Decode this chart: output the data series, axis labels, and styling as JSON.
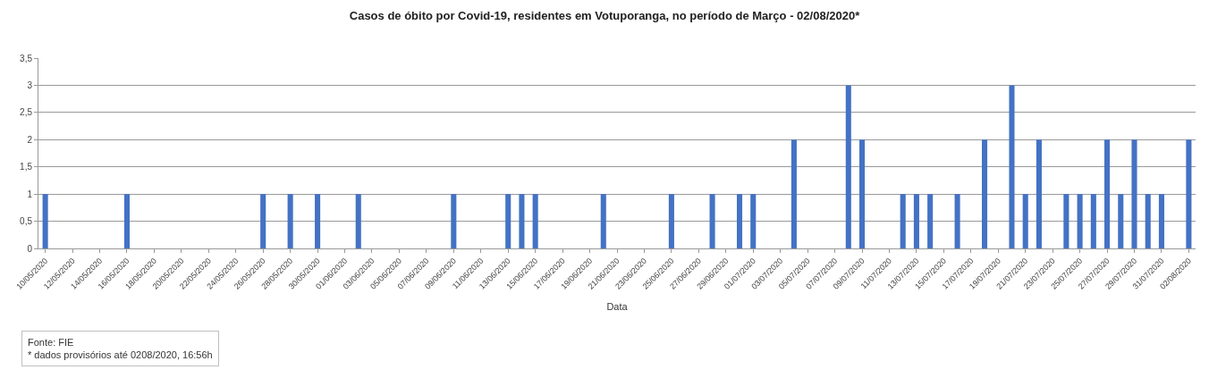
{
  "chart_data": {
    "type": "bar",
    "title": "Casos de óbito por Covid-19, residentes em Votuporanga, no período de Março - 02/08/2020*",
    "xlabel": "Data",
    "x": [
      "2020-05-10",
      "2020-05-16",
      "2020-05-26",
      "2020-05-28",
      "2020-05-30",
      "2020-06-02",
      "2020-06-09",
      "2020-06-13",
      "2020-06-14",
      "2020-06-15",
      "2020-06-20",
      "2020-06-25",
      "2020-06-28",
      "2020-06-30",
      "2020-07-01",
      "2020-07-04",
      "2020-07-08",
      "2020-07-09",
      "2020-07-12",
      "2020-07-13",
      "2020-07-14",
      "2020-07-16",
      "2020-07-18",
      "2020-07-20",
      "2020-07-21",
      "2020-07-22",
      "2020-07-24",
      "2020-07-25",
      "2020-07-26",
      "2020-07-27",
      "2020-07-28",
      "2020-07-29",
      "2020-07-30",
      "2020-07-31",
      "2020-08-02"
    ],
    "values": [
      1,
      1,
      1,
      1,
      1,
      1,
      1,
      1,
      1,
      1,
      1,
      1,
      1,
      1,
      1,
      2,
      3,
      2,
      1,
      1,
      1,
      1,
      2,
      3,
      1,
      2,
      1,
      1,
      1,
      2,
      1,
      2,
      1,
      1,
      2
    ],
    "color": "#4472c4",
    "xlim": [
      "2020-05-09T12:00",
      "2020-08-02T12:00"
    ],
    "xticks": [
      {
        "value": "2020-05-10",
        "label": "10/05/2020"
      },
      {
        "value": "2020-05-12",
        "label": "12/05/2020"
      },
      {
        "value": "2020-05-14",
        "label": "14/05/2020"
      },
      {
        "value": "2020-05-16",
        "label": "16/05/2020"
      },
      {
        "value": "2020-05-18",
        "label": "18/05/2020"
      },
      {
        "value": "2020-05-20",
        "label": "20/05/2020"
      },
      {
        "value": "2020-05-22",
        "label": "22/05/2020"
      },
      {
        "value": "2020-05-24",
        "label": "24/05/2020"
      },
      {
        "value": "2020-05-26",
        "label": "26/05/2020"
      },
      {
        "value": "2020-05-28",
        "label": "28/05/2020"
      },
      {
        "value": "2020-05-30",
        "label": "30/05/2020"
      },
      {
        "value": "2020-06-01",
        "label": "01/06/2020"
      },
      {
        "value": "2020-06-03",
        "label": "03/06/2020"
      },
      {
        "value": "2020-06-05",
        "label": "05/06/2020"
      },
      {
        "value": "2020-06-07",
        "label": "07/06/2020"
      },
      {
        "value": "2020-06-09",
        "label": "09/06/2020"
      },
      {
        "value": "2020-06-11",
        "label": "11/06/2020"
      },
      {
        "value": "2020-06-13",
        "label": "13/06/2020"
      },
      {
        "value": "2020-06-15",
        "label": "15/06/2020"
      },
      {
        "value": "2020-06-17",
        "label": "17/06/2020"
      },
      {
        "value": "2020-06-19",
        "label": "19/06/2020"
      },
      {
        "value": "2020-06-21",
        "label": "21/06/2020"
      },
      {
        "value": "2020-06-23",
        "label": "23/06/2020"
      },
      {
        "value": "2020-06-25",
        "label": "25/06/2020"
      },
      {
        "value": "2020-06-27",
        "label": "27/06/2020"
      },
      {
        "value": "2020-06-29",
        "label": "29/06/2020"
      },
      {
        "value": "2020-07-01",
        "label": "01/07/2020"
      },
      {
        "value": "2020-07-03",
        "label": "03/07/2020"
      },
      {
        "value": "2020-07-05",
        "label": "05/07/2020"
      },
      {
        "value": "2020-07-07",
        "label": "07/07/2020"
      },
      {
        "value": "2020-07-09",
        "label": "09/07/2020"
      },
      {
        "value": "2020-07-11",
        "label": "11/07/2020"
      },
      {
        "value": "2020-07-13",
        "label": "13/07/2020"
      },
      {
        "value": "2020-07-15",
        "label": "15/07/2020"
      },
      {
        "value": "2020-07-17",
        "label": "17/07/2020"
      },
      {
        "value": "2020-07-19",
        "label": "19/07/2020"
      },
      {
        "value": "2020-07-21",
        "label": "21/07/2020"
      },
      {
        "value": "2020-07-23",
        "label": "23/07/2020"
      },
      {
        "value": "2020-07-25",
        "label": "25/07/2020"
      },
      {
        "value": "2020-07-27",
        "label": "27/07/2020"
      },
      {
        "value": "2020-07-29",
        "label": "29/07/2020"
      },
      {
        "value": "2020-07-31",
        "label": "31/07/2020"
      },
      {
        "value": "2020-08-02",
        "label": "02/08/2020"
      }
    ],
    "ylim": [
      0,
      3.5
    ],
    "yticks": [
      {
        "value": 0,
        "label": "0"
      },
      {
        "value": 0.5,
        "label": "0,5"
      },
      {
        "value": 1,
        "label": "1"
      },
      {
        "value": 1.5,
        "label": "1,5"
      },
      {
        "value": 2,
        "label": "2"
      },
      {
        "value": 2.5,
        "label": "2,5"
      },
      {
        "value": 3,
        "label": "3"
      },
      {
        "value": 3.5,
        "label": "3,5"
      }
    ],
    "grid": "y",
    "annotations": [
      "Fonte: FIE",
      "* dados provisórios até 0208/2020, 16:56h"
    ]
  }
}
